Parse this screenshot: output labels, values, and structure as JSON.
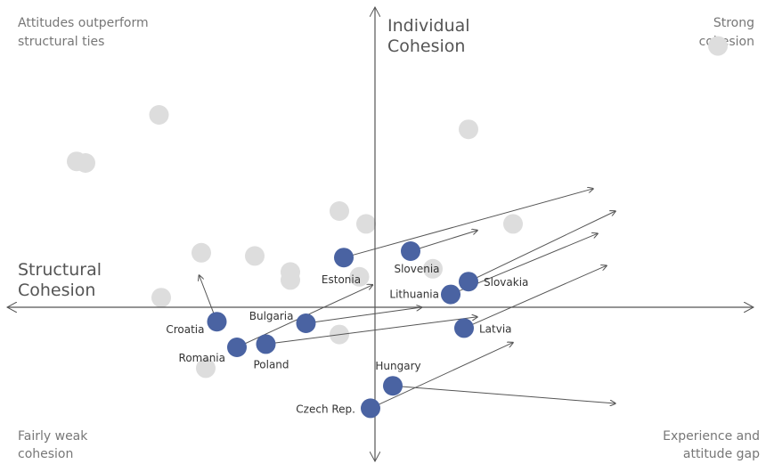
{
  "chart_data": {
    "type": "scatter",
    "title": "",
    "axes": {
      "x_title": [
        "Structural",
        "Cohesion"
      ],
      "y_title": [
        "Individual",
        "Cohesion"
      ],
      "xlim": [
        -0.85,
        0.85
      ],
      "ylim": [
        -0.68,
        0.68
      ],
      "grid": false
    },
    "quadrants": {
      "top_left": [
        "Attitudes outperform",
        "structural ties"
      ],
      "top_right": [
        "Strong",
        "cohesion"
      ],
      "bottom_left": [
        "Fairly weak",
        "cohesion"
      ],
      "bottom_right": [
        "Experience and",
        "attitude gap"
      ]
    },
    "colors": {
      "highlight": "#4a63a2",
      "background_points": "#dddddd",
      "axis": "#555555",
      "arrow": "#555555"
    },
    "background_points": [
      {
        "x": -0.485,
        "y": 0.6
      },
      {
        "x": -0.67,
        "y": 0.455
      },
      {
        "x": -0.65,
        "y": 0.45
      },
      {
        "x": 0.77,
        "y": 0.815
      },
      {
        "x": 0.21,
        "y": 0.555
      },
      {
        "x": -0.08,
        "y": 0.3
      },
      {
        "x": -0.02,
        "y": 0.26
      },
      {
        "x": 0.31,
        "y": 0.26
      },
      {
        "x": -0.39,
        "y": 0.17
      },
      {
        "x": -0.27,
        "y": 0.16
      },
      {
        "x": -0.19,
        "y": 0.11
      },
      {
        "x": -0.19,
        "y": 0.085
      },
      {
        "x": -0.035,
        "y": 0.095
      },
      {
        "x": 0.13,
        "y": 0.12
      },
      {
        "x": -0.48,
        "y": 0.03
      },
      {
        "x": -0.08,
        "y": -0.085
      },
      {
        "x": -0.38,
        "y": -0.19
      }
    ],
    "countries": [
      {
        "name": "Estonia",
        "x": -0.07,
        "y": 0.155,
        "arrow_to": {
          "x": 0.49,
          "y": 0.37
        }
      },
      {
        "name": "Slovenia",
        "x": 0.08,
        "y": 0.175,
        "arrow_to": {
          "x": 0.23,
          "y": 0.24
        }
      },
      {
        "name": "Slovakia",
        "x": 0.21,
        "y": 0.08,
        "arrow_to": {
          "x": 0.54,
          "y": 0.3
        }
      },
      {
        "name": "Lithuania",
        "x": 0.17,
        "y": 0.04,
        "arrow_to": {
          "x": 0.5,
          "y": 0.23
        }
      },
      {
        "name": "Bulgaria",
        "x": -0.155,
        "y": -0.05,
        "arrow_to": {
          "x": 0.105,
          "y": -0.0
        }
      },
      {
        "name": "Croatia",
        "x": -0.355,
        "y": -0.045,
        "arrow_to": {
          "x": -0.395,
          "y": 0.1
        }
      },
      {
        "name": "Latvia",
        "x": 0.2,
        "y": -0.065,
        "arrow_to": {
          "x": 0.52,
          "y": 0.13
        }
      },
      {
        "name": "Romania",
        "x": -0.31,
        "y": -0.125,
        "arrow_to": {
          "x": -0.005,
          "y": 0.07
        }
      },
      {
        "name": "Poland",
        "x": -0.245,
        "y": -0.115,
        "arrow_to": {
          "x": 0.23,
          "y": -0.03
        }
      },
      {
        "name": "Hungary",
        "x": 0.04,
        "y": -0.245,
        "arrow_to": {
          "x": 0.54,
          "y": -0.3
        }
      },
      {
        "name": "Czech Rep.",
        "x": -0.01,
        "y": -0.315,
        "arrow_to": {
          "x": 0.31,
          "y": -0.11
        }
      }
    ]
  }
}
